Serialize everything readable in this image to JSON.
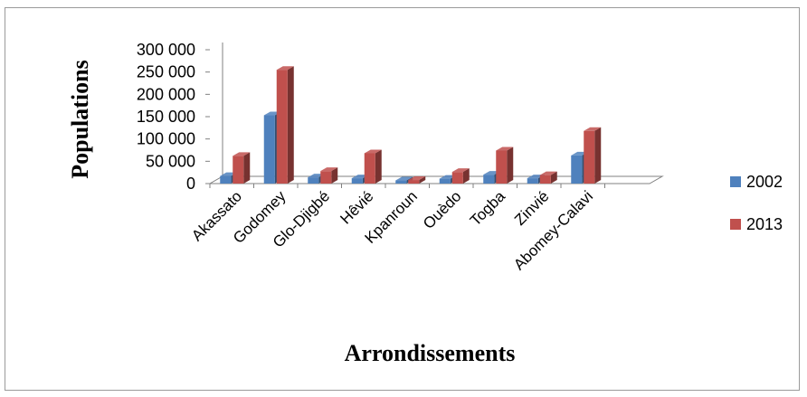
{
  "chart_data": {
    "type": "bar",
    "title": "",
    "xlabel": "Arrondissements",
    "ylabel": "Populations",
    "ylim": [
      0,
      300000
    ],
    "yticks": [
      0,
      50000,
      100000,
      150000,
      200000,
      250000,
      300000
    ],
    "ytick_labels": [
      "0",
      "50 000",
      "100 000",
      "150 000",
      "200 000",
      "250 000",
      "300 000"
    ],
    "categories": [
      "Akassato",
      "Godomey",
      "Glo-Djigbé",
      "Hêvié",
      "Kpanroun",
      "Ouèdo",
      "Togba",
      "Zinvié",
      "Abomey-Calavi"
    ],
    "series": [
      {
        "name": "2002",
        "color": "#4f81bd",
        "values": [
          17000,
          153000,
          14000,
          12000,
          7000,
          11000,
          20000,
          12000,
          63000
        ]
      },
      {
        "name": "2013",
        "color": "#c0504d",
        "values": [
          62000,
          255000,
          28000,
          68000,
          8000,
          26000,
          74000,
          19000,
          118000
        ]
      }
    ],
    "grid": false,
    "legend_position": "right",
    "style": "3d-clustered-column"
  }
}
